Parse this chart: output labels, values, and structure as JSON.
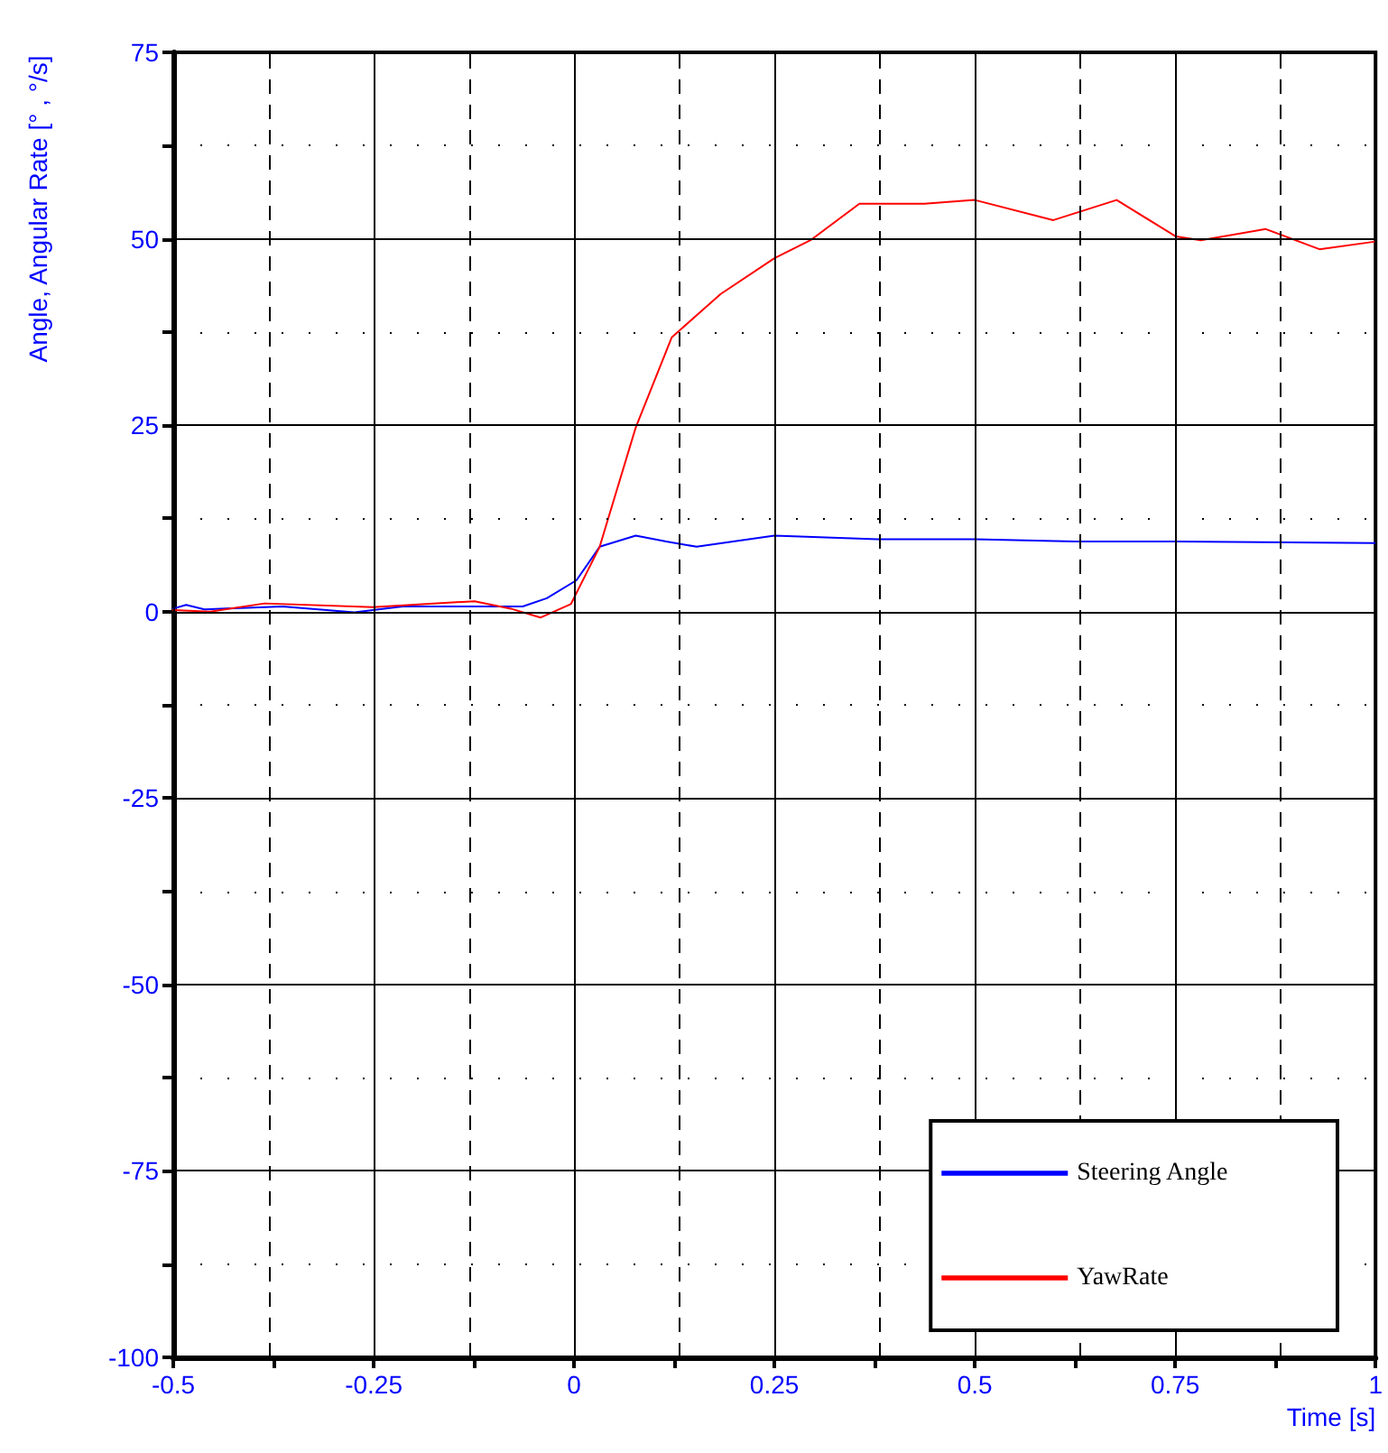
{
  "chart_data": {
    "type": "line",
    "xlabel": "Time [s]",
    "ylabel": "Angle, Angular Rate [° , °/s]",
    "xlim": [
      -0.5,
      1
    ],
    "ylim": [
      -100,
      75
    ],
    "xticks": [
      -0.5,
      {
        "value": -0.375,
        "label": null
      },
      -0.25,
      {
        "value": -0.125,
        "label": null
      },
      0,
      {
        "value": 0.125,
        "label": null
      },
      0.25,
      {
        "value": 0.375,
        "label": null
      },
      0.5,
      {
        "value": 0.625,
        "label": null
      },
      0.75,
      {
        "value": 0.875,
        "label": null
      },
      1
    ],
    "yticks": [
      -100,
      {
        "value": -87.5,
        "label": null
      },
      -75,
      {
        "value": -62.5,
        "label": null
      },
      -50,
      {
        "value": -37.5,
        "label": null
      },
      -25,
      {
        "value": -12.5,
        "label": null
      },
      0,
      {
        "value": 12.5,
        "label": null
      },
      25,
      {
        "value": 37.5,
        "label": null
      },
      50,
      {
        "value": 62.5,
        "label": null
      },
      75
    ],
    "grid": true,
    "legend": "bottom right",
    "marker": "none",
    "line_style": "solid",
    "series": [
      {
        "name": "Steering Angle",
        "color": "#0000ff",
        "x": [
          -0.5,
          -0.484,
          -0.461,
          -0.364,
          -0.274,
          -0.214,
          -0.064,
          -0.034,
          0.003,
          0.032,
          0.077,
          0.115,
          0.153,
          0.25,
          0.378,
          0.5,
          0.625,
          0.751,
          1.0
        ],
        "values": [
          0.4,
          0.9,
          0.3,
          0.7,
          -0.1,
          0.7,
          0.7,
          1.8,
          4.2,
          8.7,
          10.2,
          9.4,
          8.7,
          10.2,
          9.7,
          9.7,
          9.4,
          9.4,
          9.2
        ]
      },
      {
        "name": "YawRate",
        "color": "#ff0000",
        "x": [
          -0.5,
          -0.454,
          -0.386,
          -0.251,
          -0.124,
          -0.079,
          -0.042,
          -0.004,
          0.032,
          0.077,
          0.122,
          0.183,
          0.25,
          0.295,
          0.356,
          0.437,
          0.5,
          0.598,
          0.677,
          0.751,
          0.782,
          0.863,
          0.93,
          0.998
        ],
        "values": [
          0.2,
          0,
          1.1,
          0.6,
          1.4,
          0.4,
          -0.8,
          1.0,
          8.7,
          24.7,
          36.8,
          42.6,
          47.4,
          49.8,
          54.7,
          54.7,
          55.2,
          52.5,
          55.2,
          50.3,
          49.8,
          51.3,
          48.6,
          49.6
        ]
      }
    ]
  }
}
